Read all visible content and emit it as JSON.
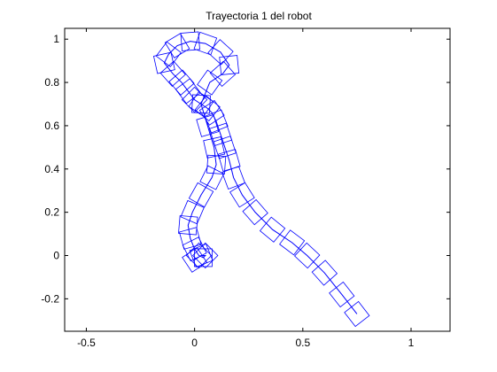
{
  "chart_data": {
    "type": "line",
    "title": "Trayectoria 1 del robot",
    "xlabel": "",
    "ylabel": "",
    "xlim": [
      -0.6,
      1.18
    ],
    "ylim": [
      -0.35,
      1.05
    ],
    "xticks": [
      -0.5,
      0,
      0.5,
      1
    ],
    "xtick_labels": [
      "-0.5",
      "0",
      "0.5",
      "1"
    ],
    "yticks": [
      -0.2,
      0,
      0.2,
      0.4,
      0.6,
      0.8,
      1
    ],
    "ytick_labels": [
      "-0.2",
      "0",
      "0.2",
      "0.4",
      "0.6",
      "0.8",
      "1"
    ],
    "grid": false,
    "line_color": "#0000ff",
    "series": [
      {
        "marker": "square",
        "x": [
          0.75,
          0.68,
          0.6,
          0.52,
          0.45,
          0.36,
          0.28,
          0.22,
          0.18,
          0.16,
          0.14,
          0.12,
          0.1,
          0.08,
          0.06,
          0.03,
          0.0,
          -0.03,
          -0.06,
          -0.1,
          -0.14,
          -0.12,
          -0.08,
          -0.02,
          0.05,
          0.12,
          0.16,
          0.13,
          0.07,
          0.03,
          0.06,
          0.09,
          0.1,
          0.08,
          0.03,
          -0.01,
          -0.03,
          -0.02,
          0.0,
          0.02,
          0.04,
          0.05,
          0.03,
          0.0
        ],
        "y": [
          -0.27,
          -0.18,
          -0.08,
          0.0,
          0.06,
          0.12,
          0.2,
          0.28,
          0.36,
          0.44,
          0.5,
          0.56,
          0.62,
          0.66,
          0.68,
          0.7,
          0.72,
          0.76,
          0.8,
          0.84,
          0.89,
          0.93,
          0.97,
          0.99,
          0.98,
          0.94,
          0.88,
          0.84,
          0.8,
          0.7,
          0.6,
          0.5,
          0.42,
          0.36,
          0.28,
          0.2,
          0.14,
          0.08,
          0.03,
          0.0,
          -0.01,
          0.0,
          0.0,
          -0.02
        ]
      }
    ]
  }
}
